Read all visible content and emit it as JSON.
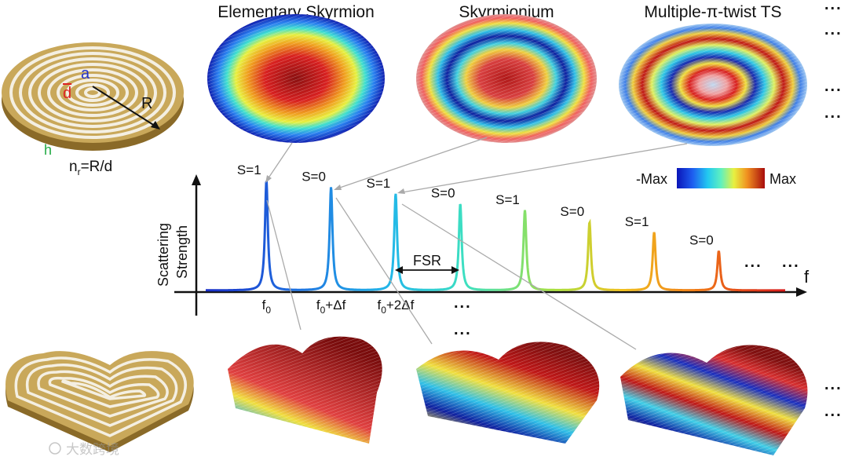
{
  "titles": {
    "skyrmion": "Elementary Skyrmion",
    "skyrmionium": "Skyrmionium",
    "multi": "Multiple-π-twist TS"
  },
  "disk": {
    "label_a": "a",
    "label_d": "d",
    "label_R": "R",
    "label_h": "h",
    "formula_n": "n",
    "formula_sub": "r",
    "formula_rest": "=R/d"
  },
  "colorbar": {
    "min_label": "-Max",
    "max_label": "Max"
  },
  "ellipsis": "...",
  "watermark": "大数跨境",
  "colors": {
    "label_a": "#2233cc",
    "label_d": "#dd2222",
    "label_h": "#22aa44",
    "gold": "#b8963e"
  },
  "chart_data": {
    "type": "line",
    "title": "",
    "xlabel": "f",
    "ylabel": "Scattering Strength",
    "ylabel_line1": "Scattering",
    "ylabel_line2": "Strength",
    "peaks": [
      {
        "pos": 1,
        "height": 1.0,
        "S_label": "S=1",
        "color": "#1a2fc8"
      },
      {
        "pos": 2,
        "height": 0.94,
        "S_label": "S=0",
        "color": "#1f6fe0"
      },
      {
        "pos": 3,
        "height": 0.88,
        "S_label": "S=1",
        "color": "#22b8e8"
      },
      {
        "pos": 4,
        "height": 0.79,
        "S_label": "S=0",
        "color": "#3ee0c0"
      },
      {
        "pos": 5,
        "height": 0.73,
        "S_label": "S=1",
        "color": "#a8e040"
      },
      {
        "pos": 6,
        "height": 0.62,
        "S_label": "S=0",
        "color": "#f0c020"
      },
      {
        "pos": 7,
        "height": 0.53,
        "S_label": "S=1",
        "color": "#f07a18"
      },
      {
        "pos": 8,
        "height": 0.36,
        "S_label": "S=0",
        "color": "#d81c1c"
      }
    ],
    "xtick_labels": [
      {
        "base": "f",
        "sub": "0",
        "rest": ""
      },
      {
        "base": "f",
        "sub": "0",
        "rest": "+Δf"
      },
      {
        "base": "f",
        "sub": "0",
        "rest": "+2Δf"
      }
    ],
    "annotation": "FSR",
    "ylim": [
      0,
      1.1
    ]
  }
}
